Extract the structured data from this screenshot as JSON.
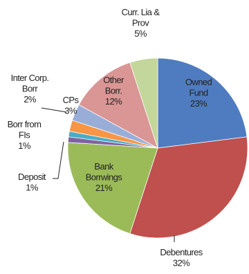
{
  "chart_data": {
    "type": "pie",
    "start_angle_deg": 0,
    "direction": "clockwise",
    "slices": [
      {
        "name_lines": [
          "Owned",
          "Fund"
        ],
        "pct_label": "23%",
        "value": 23,
        "color": "#4f7cc0"
      },
      {
        "name_lines": [
          "Debentures"
        ],
        "pct_label": "32%",
        "value": 32,
        "color": "#c0504d"
      },
      {
        "name_lines": [
          "Bank",
          "Borrwings"
        ],
        "pct_label": "21%",
        "value": 21,
        "color": "#9bbb59"
      },
      {
        "name_lines": [
          "Deposit"
        ],
        "pct_label": "1%",
        "value": 1,
        "color": "#7f63a2"
      },
      {
        "name_lines": [
          "Borr from",
          "FIs"
        ],
        "pct_label": "1%",
        "value": 1,
        "color": "#4bacc6"
      },
      {
        "name_lines": [
          "Inter Corp.",
          "Borr"
        ],
        "pct_label": "2%",
        "value": 2,
        "color": "#f79646"
      },
      {
        "name_lines": [
          "CPs"
        ],
        "pct_label": "3%",
        "value": 3,
        "color": "#98aed8"
      },
      {
        "name_lines": [
          "Other",
          "Borr."
        ],
        "pct_label": "12%",
        "value": 12,
        "color": "#d99694"
      },
      {
        "name_lines": [
          "Curr. Lia &",
          "Prov"
        ],
        "pct_label": "5%",
        "value": 5,
        "color": "#c3d69b"
      }
    ]
  }
}
